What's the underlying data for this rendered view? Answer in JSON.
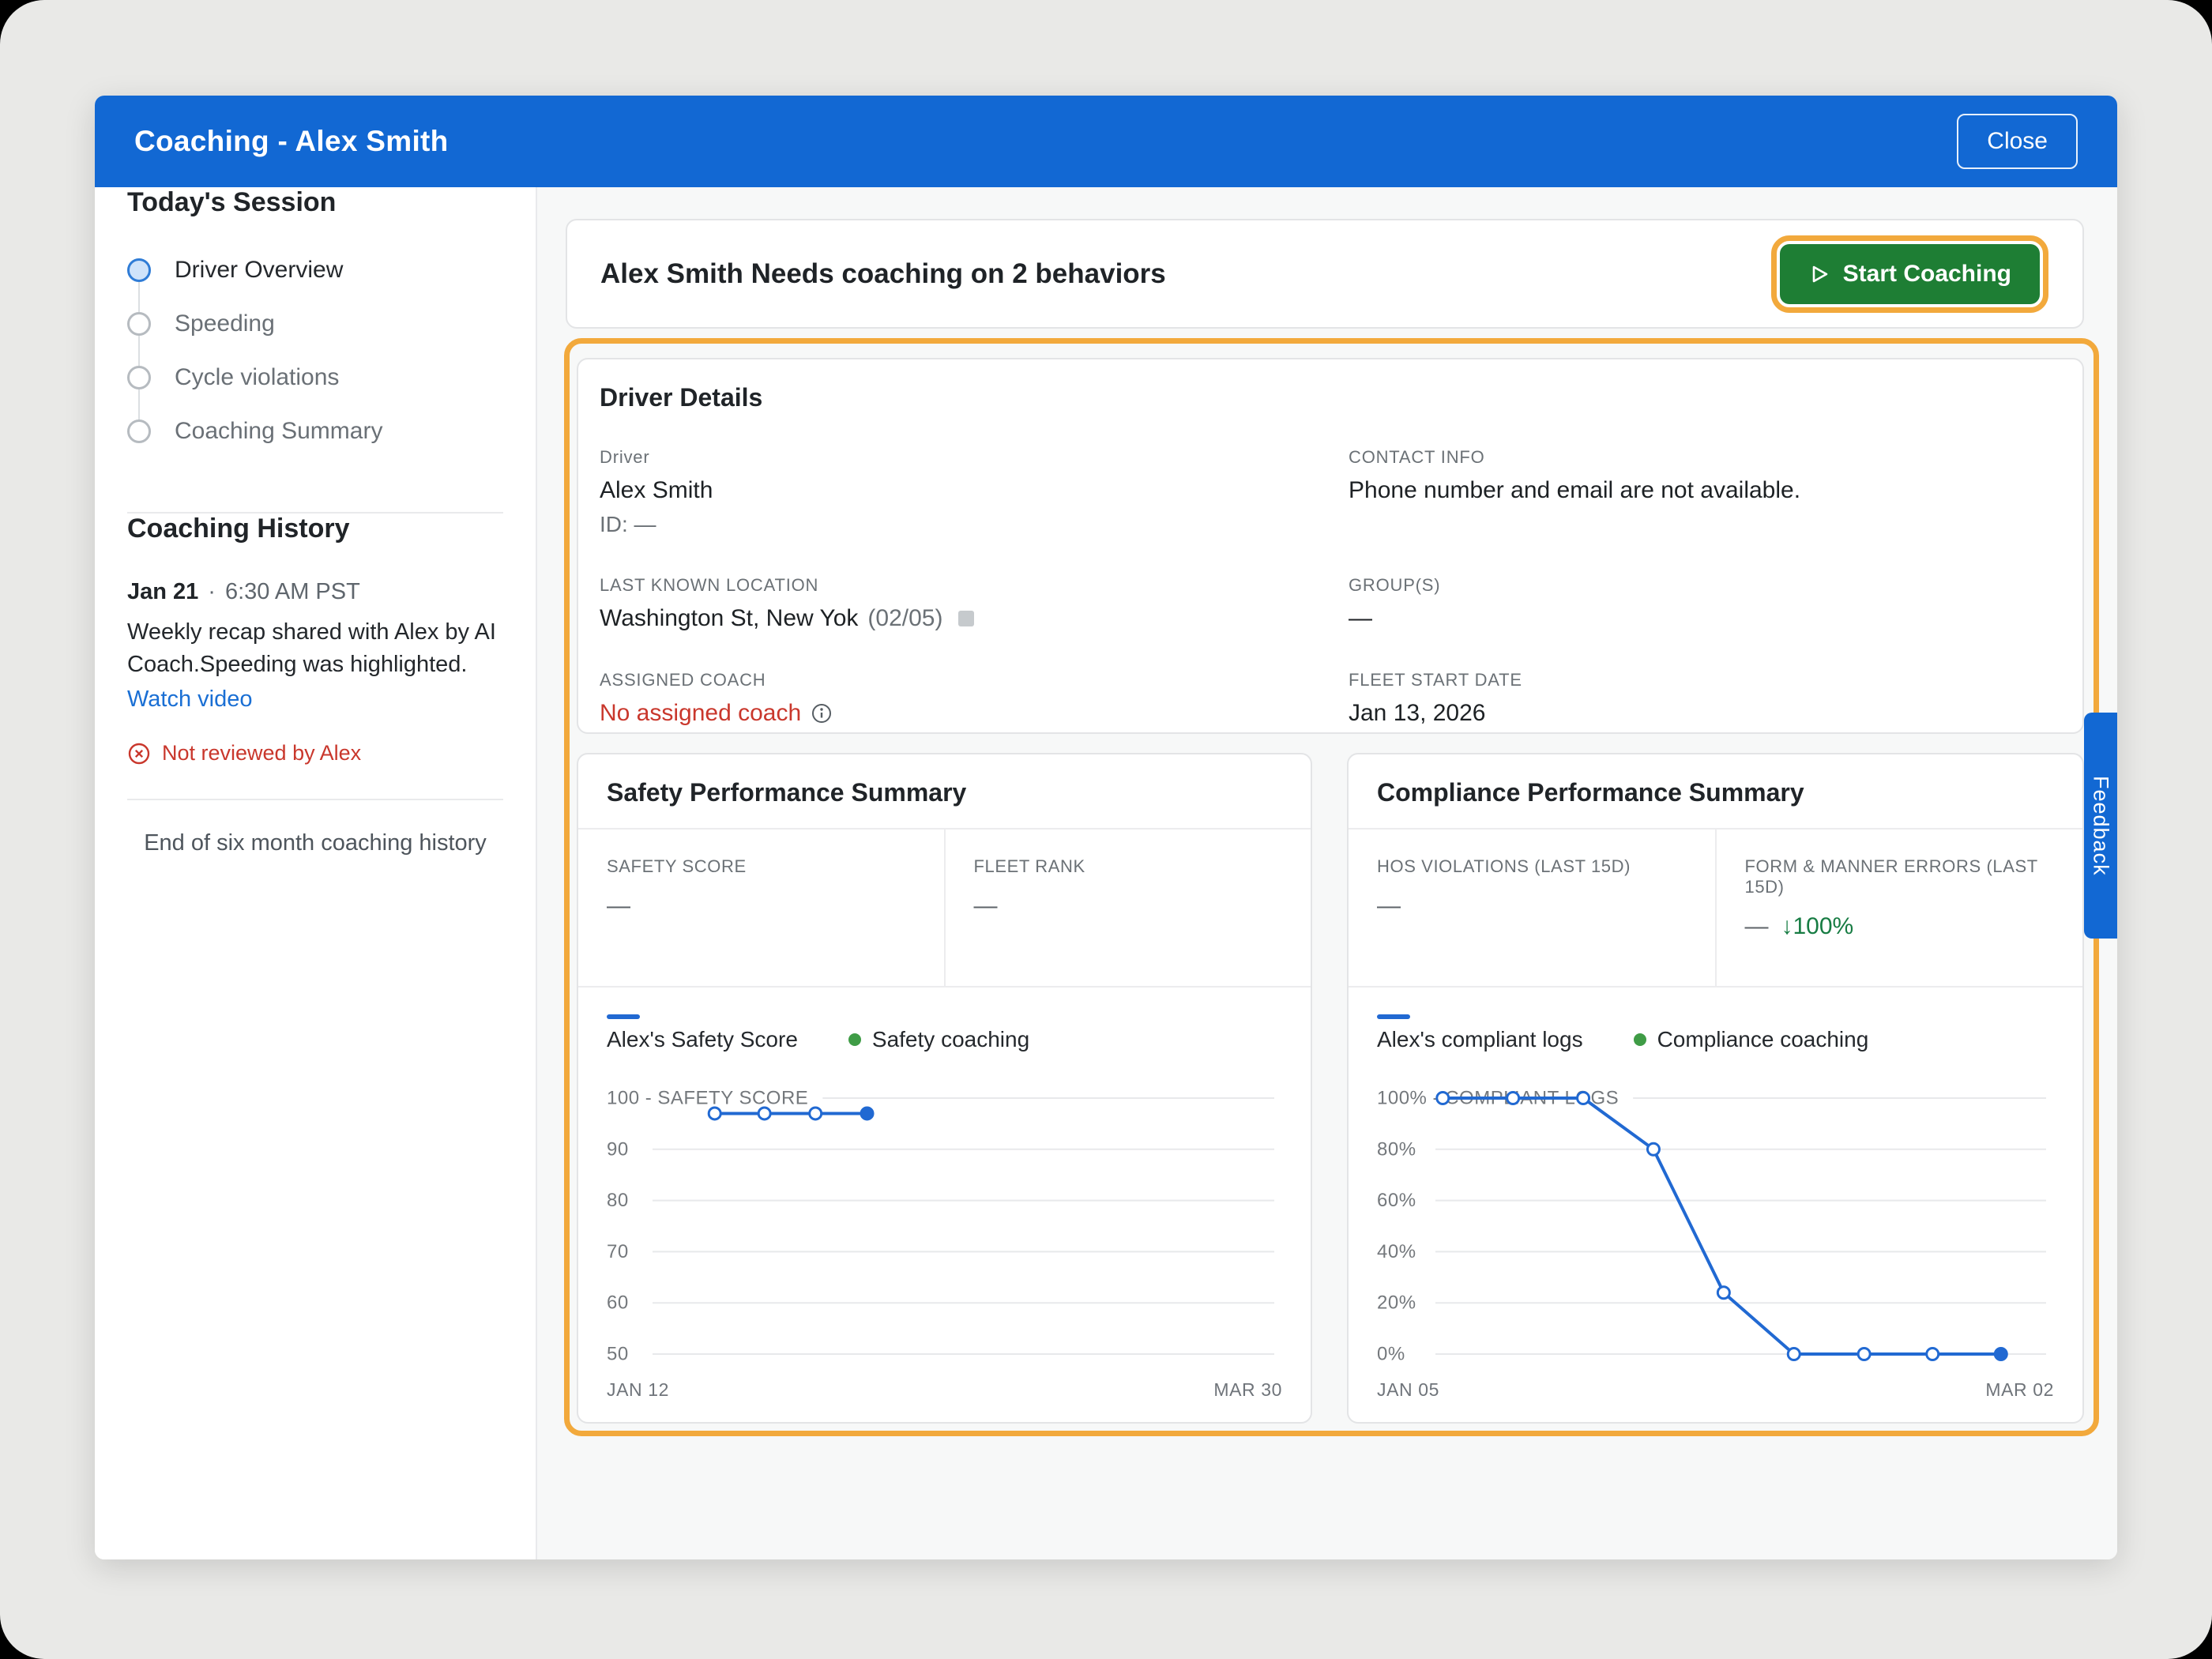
{
  "window": {
    "title": "Coaching - Alex Smith",
    "close_label": "Close"
  },
  "sidebar": {
    "session_title": "Today's Session",
    "steps": [
      {
        "label": "Driver Overview",
        "state": "active"
      },
      {
        "label": "Speeding",
        "state": "upcoming"
      },
      {
        "label": "Cycle violations",
        "state": "upcoming"
      },
      {
        "label": "Coaching Summary",
        "state": "upcoming"
      }
    ],
    "history_title": "Coaching History",
    "history": {
      "date": "Jan 21",
      "separator": "·",
      "time": "6:30 AM PST",
      "summary": "Weekly recap shared with Alex by AI Coach.Speeding was highlighted.",
      "link_label": "Watch video",
      "status": "Not reviewed by Alex"
    },
    "history_end": "End of six month coaching history"
  },
  "banner": {
    "title": "Alex Smith Needs coaching on 2 behaviors",
    "button_label": "Start Coaching"
  },
  "driver_details": {
    "title": "Driver Details",
    "fields": [
      {
        "label": "Driver",
        "value": "Alex Smith",
        "sub": "ID: —"
      },
      {
        "label": "CONTACT INFO",
        "value": "Phone number and email are not available."
      },
      {
        "label": "LAST KNOWN LOCATION",
        "value": "Washington St, New Yok",
        "suffix": "(02/05)"
      },
      {
        "label": "GROUP(S)",
        "value": "—"
      },
      {
        "label": "ASSIGNED COACH",
        "value": "No assigned coach"
      },
      {
        "label": "FLEET START DATE",
        "value": "Jan 13, 2026"
      }
    ]
  },
  "cards": {
    "safety": {
      "stats": [
        {
          "label": "SAFETY SCORE",
          "value": "—"
        },
        {
          "label": "FLEET RANK",
          "value": "—"
        }
      ]
    },
    "compliance": {
      "stats": [
        {
          "label": "HOS VIOLATIONS (LAST 15D)",
          "value": "—"
        },
        {
          "label": "FORM & MANNER ERRORS (LAST 15D)",
          "value": "—",
          "delta": "↓100%"
        }
      ]
    }
  },
  "feedback_label": "Feedback",
  "colors": {
    "header_blue": "#1268d3",
    "highlight_amber": "#f2a93c",
    "button_green": "#1e7e34",
    "alert_red": "#c9372c",
    "link_blue": "#1a6fd4",
    "chart_blue": "#2169d2",
    "coaching_green": "#3f9c46",
    "delta_green": "#177c43"
  },
  "chart_data": [
    {
      "type": "line",
      "title": "Safety Performance Summary",
      "axis_title": "SAFETY SCORE",
      "yticks": [
        "100",
        "90",
        "80",
        "70",
        "60",
        "50"
      ],
      "ymax": 100,
      "ymin": 50,
      "x_start": "JAN 12",
      "x_end": "MAR 30",
      "line_color": "#2169d2",
      "plot_left": 58,
      "grid": true,
      "legend": [
        {
          "label": "Alex's Safety Score",
          "swatch": "line",
          "color": "#2169d2"
        },
        {
          "label": "Safety coaching",
          "swatch": "dot",
          "color": "#3f9c46"
        }
      ],
      "series": [
        {
          "name": "Alex's Safety Score",
          "points": [
            [
              0.1,
              97
            ],
            [
              0.18,
              97
            ],
            [
              0.262,
              97
            ],
            [
              0.345,
              97
            ]
          ]
        }
      ]
    },
    {
      "type": "line",
      "title": "Compliance Performance Summary",
      "axis_title": "COMPLIANT LOGS",
      "yticks": [
        "100%",
        "80%",
        "60%",
        "40%",
        "20%",
        "0%"
      ],
      "ymax": 100,
      "ymin": 0,
      "x_start": "JAN 05",
      "x_end": "MAR 02",
      "line_color": "#2169d2",
      "plot_left": 74,
      "grid": true,
      "legend": [
        {
          "label": "Alex's compliant logs",
          "swatch": "line",
          "color": "#2169d2"
        },
        {
          "label": "Compliance coaching",
          "swatch": "dot",
          "color": "#3f9c46"
        }
      ],
      "series": [
        {
          "name": "Alex's compliant logs",
          "points": [
            [
              0.012,
              100
            ],
            [
              0.127,
              100
            ],
            [
              0.242,
              100
            ],
            [
              0.357,
              80
            ],
            [
              0.472,
              24
            ],
            [
              0.587,
              0
            ],
            [
              0.702,
              0
            ],
            [
              0.814,
              0
            ],
            [
              0.926,
              0
            ]
          ]
        }
      ]
    }
  ]
}
